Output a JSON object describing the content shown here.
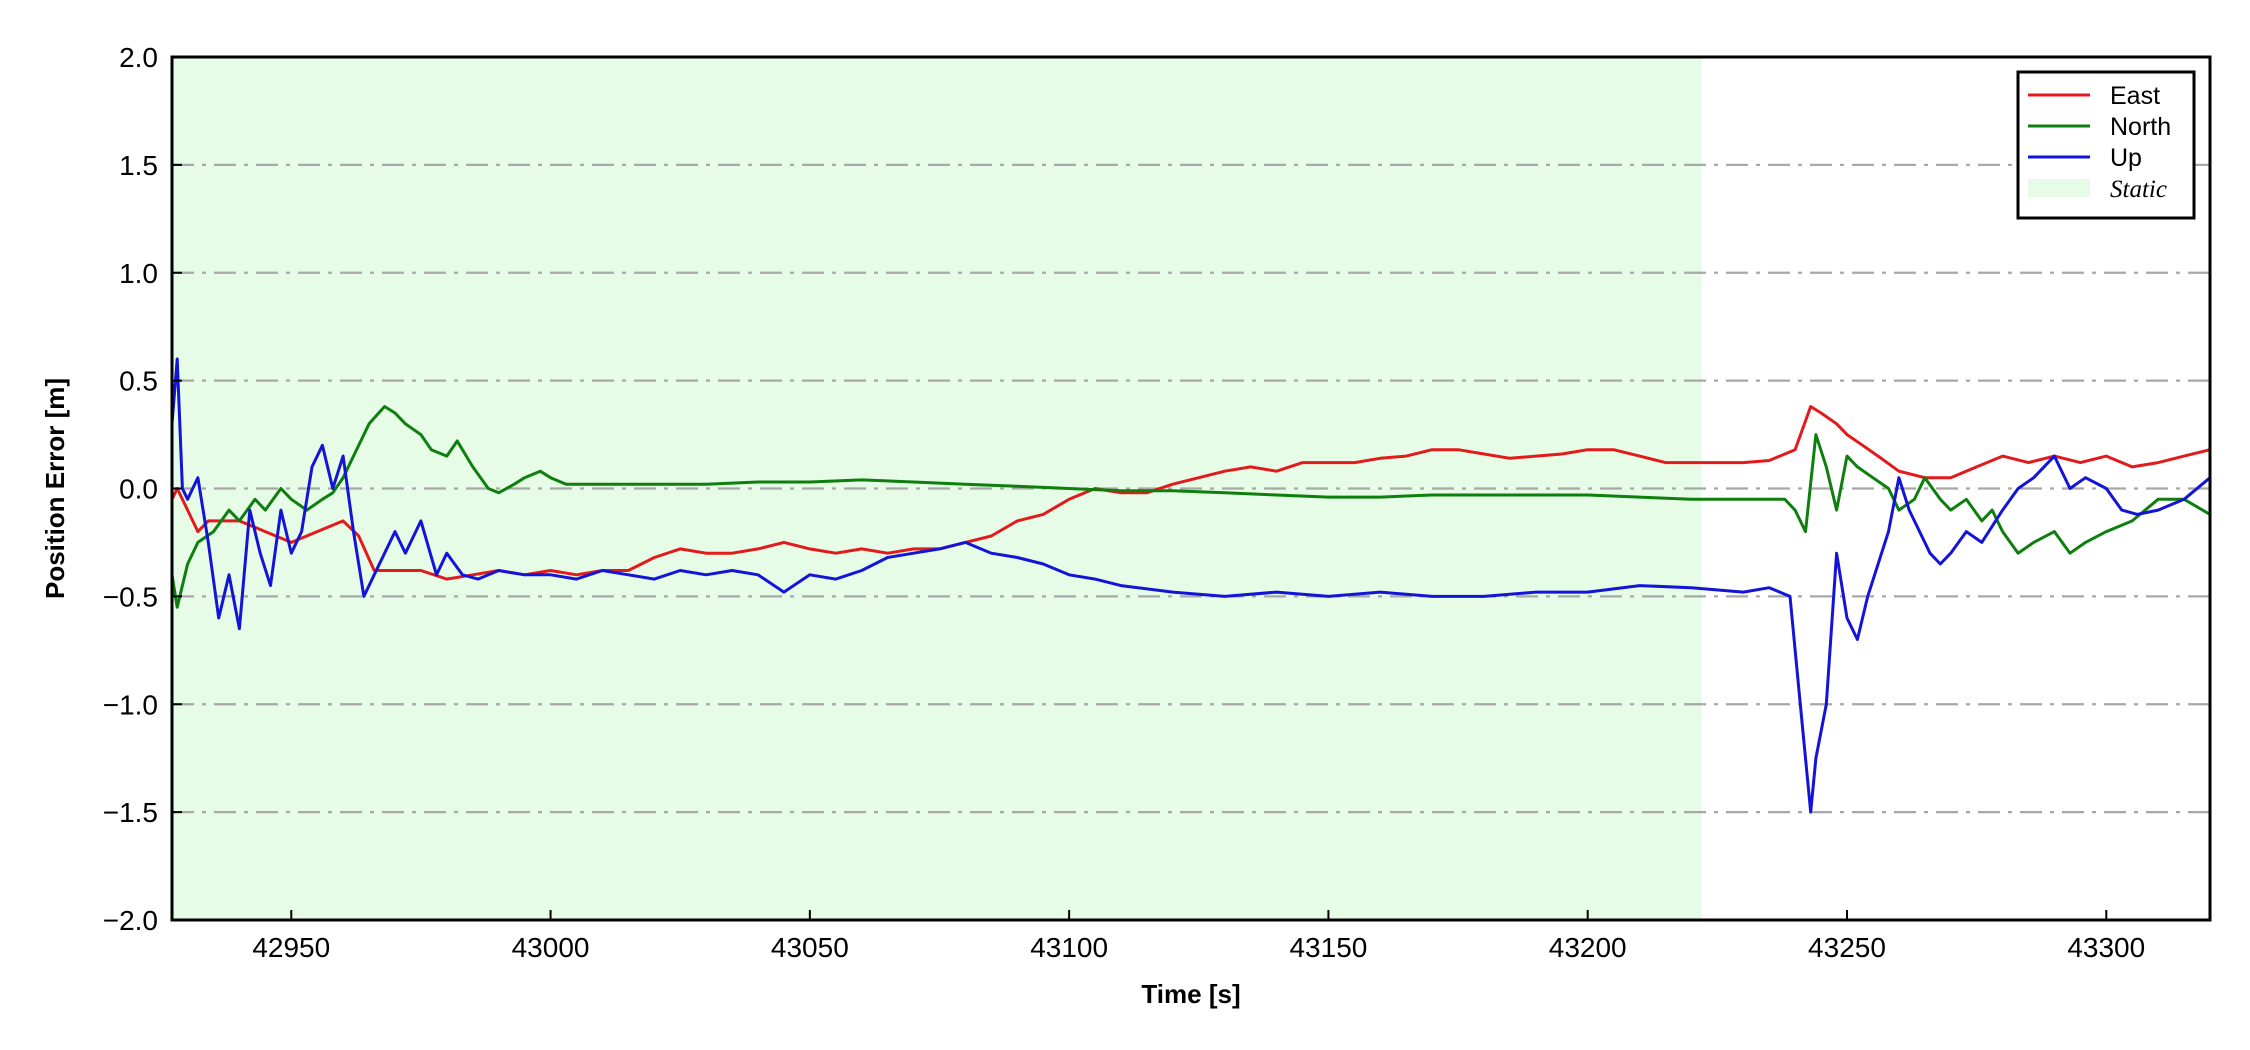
{
  "chart_data": {
    "type": "line",
    "title": "",
    "xlabel": "Time [s]",
    "ylabel": "Position Error [m]",
    "xlim": [
      42927,
      43320
    ],
    "ylim": [
      -2.0,
      2.0
    ],
    "x_ticks": [
      42950,
      43000,
      43050,
      43100,
      43150,
      43200,
      43250,
      43300
    ],
    "x_tick_labels": [
      "42950",
      "43000",
      "43050",
      "43100",
      "43150",
      "43200",
      "43250",
      "43300"
    ],
    "y_ticks": [
      -2.0,
      -1.5,
      -1.0,
      -0.5,
      0.0,
      0.5,
      1.0,
      1.5,
      2.0
    ],
    "y_tick_labels": [
      "−2.0",
      "−1.5",
      "−1.0",
      "−0.5",
      "0.0",
      "0.5",
      "1.0",
      "1.5",
      "2.0"
    ],
    "grid": "horizontal dash-dot",
    "legend_position": "top-right",
    "static_region": {
      "label": "Static",
      "x_start": 42927,
      "x_end": 43222,
      "color": "#e6fce6"
    },
    "series": [
      {
        "name": "East",
        "color": "#e31a1c",
        "x": [
          42927,
          42928,
          42930,
          42932,
          42934,
          42936,
          42940,
          42945,
          42950,
          42955,
          42960,
          42963,
          42966,
          42970,
          42975,
          42980,
          42985,
          42990,
          42995,
          43000,
          43005,
          43010,
          43015,
          43020,
          43025,
          43030,
          43035,
          43040,
          43045,
          43050,
          43055,
          43060,
          43065,
          43070,
          43075,
          43080,
          43085,
          43090,
          43095,
          43100,
          43105,
          43110,
          43115,
          43120,
          43125,
          43130,
          43135,
          43140,
          43145,
          43150,
          43155,
          43160,
          43165,
          43170,
          43175,
          43180,
          43185,
          43190,
          43195,
          43200,
          43205,
          43210,
          43215,
          43220,
          43225,
          43230,
          43235,
          43240,
          43243,
          43245,
          43248,
          43250,
          43253,
          43256,
          43260,
          43265,
          43270,
          43275,
          43280,
          43285,
          43290,
          43295,
          43300,
          43305,
          43310,
          43315,
          43320
        ],
        "y": [
          -0.05,
          0.0,
          -0.1,
          -0.2,
          -0.15,
          -0.15,
          -0.15,
          -0.2,
          -0.25,
          -0.2,
          -0.15,
          -0.22,
          -0.38,
          -0.38,
          -0.38,
          -0.42,
          -0.4,
          -0.38,
          -0.4,
          -0.38,
          -0.4,
          -0.38,
          -0.38,
          -0.32,
          -0.28,
          -0.3,
          -0.3,
          -0.28,
          -0.25,
          -0.28,
          -0.3,
          -0.28,
          -0.3,
          -0.28,
          -0.28,
          -0.25,
          -0.22,
          -0.15,
          -0.12,
          -0.05,
          0.0,
          -0.02,
          -0.02,
          0.02,
          0.05,
          0.08,
          0.1,
          0.08,
          0.12,
          0.12,
          0.12,
          0.14,
          0.15,
          0.18,
          0.18,
          0.16,
          0.14,
          0.15,
          0.16,
          0.18,
          0.18,
          0.15,
          0.12,
          0.12,
          0.12,
          0.12,
          0.13,
          0.18,
          0.38,
          0.35,
          0.3,
          0.25,
          0.2,
          0.15,
          0.08,
          0.05,
          0.05,
          0.1,
          0.15,
          0.12,
          0.15,
          0.12,
          0.15,
          0.1,
          0.12,
          0.15,
          0.18
        ]
      },
      {
        "name": "North",
        "color": "#0e7f0e",
        "x": [
          42927,
          42928,
          42930,
          42932,
          42935,
          42938,
          42940,
          42943,
          42945,
          42948,
          42950,
          42953,
          42956,
          42958,
          42960,
          42962,
          42965,
          42968,
          42970,
          42972,
          42975,
          42977,
          42980,
          42982,
          42985,
          42988,
          42990,
          42993,
          42995,
          42998,
          43000,
          43003,
          43005,
          43010,
          43015,
          43020,
          43030,
          43040,
          43050,
          43060,
          43070,
          43080,
          43090,
          43100,
          43110,
          43120,
          43130,
          43140,
          43150,
          43160,
          43170,
          43180,
          43190,
          43200,
          43210,
          43220,
          43230,
          43238,
          43240,
          43242,
          43244,
          43246,
          43248,
          43250,
          43252,
          43255,
          43258,
          43260,
          43263,
          43265,
          43268,
          43270,
          43273,
          43276,
          43278,
          43280,
          43283,
          43286,
          43290,
          43293,
          43296,
          43300,
          43305,
          43310,
          43315,
          43320
        ],
        "y": [
          -0.4,
          -0.55,
          -0.35,
          -0.25,
          -0.2,
          -0.1,
          -0.15,
          -0.05,
          -0.1,
          0.0,
          -0.05,
          -0.1,
          -0.05,
          -0.02,
          0.05,
          0.15,
          0.3,
          0.38,
          0.35,
          0.3,
          0.25,
          0.18,
          0.15,
          0.22,
          0.1,
          0.0,
          -0.02,
          0.02,
          0.05,
          0.08,
          0.05,
          0.02,
          0.02,
          0.02,
          0.02,
          0.02,
          0.02,
          0.03,
          0.03,
          0.04,
          0.03,
          0.02,
          0.01,
          0.0,
          -0.01,
          -0.01,
          -0.02,
          -0.03,
          -0.04,
          -0.04,
          -0.03,
          -0.03,
          -0.03,
          -0.03,
          -0.04,
          -0.05,
          -0.05,
          -0.05,
          -0.1,
          -0.2,
          0.25,
          0.1,
          -0.1,
          0.15,
          0.1,
          0.05,
          0.0,
          -0.1,
          -0.05,
          0.05,
          -0.05,
          -0.1,
          -0.05,
          -0.15,
          -0.1,
          -0.2,
          -0.3,
          -0.25,
          -0.2,
          -0.3,
          -0.25,
          -0.2,
          -0.15,
          -0.05,
          -0.05,
          -0.12
        ]
      },
      {
        "name": "Up",
        "color": "#1414d8",
        "x": [
          42927,
          42928,
          42929,
          42930,
          42931,
          42932,
          42934,
          42936,
          42938,
          42940,
          42942,
          42944,
          42946,
          42948,
          42950,
          42952,
          42954,
          42956,
          42958,
          42960,
          42962,
          42964,
          42966,
          42968,
          42970,
          42972,
          42975,
          42978,
          42980,
          42983,
          42986,
          42990,
          42995,
          43000,
          43005,
          43010,
          43015,
          43020,
          43025,
          43030,
          43035,
          43040,
          43045,
          43050,
          43055,
          43060,
          43065,
          43070,
          43075,
          43080,
          43085,
          43090,
          43095,
          43100,
          43105,
          43110,
          43120,
          43130,
          43140,
          43150,
          43160,
          43170,
          43180,
          43190,
          43200,
          43210,
          43220,
          43230,
          43235,
          43239,
          43241,
          43243,
          43244,
          43246,
          43248,
          43250,
          43252,
          43254,
          43256,
          43258,
          43260,
          43262,
          43264,
          43266,
          43268,
          43270,
          43273,
          43276,
          43280,
          43283,
          43286,
          43290,
          43293,
          43296,
          43300,
          43303,
          43306,
          43310,
          43315,
          43320
        ],
        "y": [
          0.3,
          0.6,
          0.0,
          -0.05,
          0.0,
          0.05,
          -0.25,
          -0.6,
          -0.4,
          -0.65,
          -0.1,
          -0.3,
          -0.45,
          -0.1,
          -0.3,
          -0.2,
          0.1,
          0.2,
          0.0,
          0.15,
          -0.2,
          -0.5,
          -0.4,
          -0.3,
          -0.2,
          -0.3,
          -0.15,
          -0.4,
          -0.3,
          -0.4,
          -0.42,
          -0.38,
          -0.4,
          -0.4,
          -0.42,
          -0.38,
          -0.4,
          -0.42,
          -0.38,
          -0.4,
          -0.38,
          -0.4,
          -0.48,
          -0.4,
          -0.42,
          -0.38,
          -0.32,
          -0.3,
          -0.28,
          -0.25,
          -0.3,
          -0.32,
          -0.35,
          -0.4,
          -0.42,
          -0.45,
          -0.48,
          -0.5,
          -0.48,
          -0.5,
          -0.48,
          -0.5,
          -0.5,
          -0.48,
          -0.48,
          -0.45,
          -0.46,
          -0.48,
          -0.46,
          -0.5,
          -1.0,
          -1.5,
          -1.25,
          -1.0,
          -0.3,
          -0.6,
          -0.7,
          -0.5,
          -0.35,
          -0.2,
          0.05,
          -0.1,
          -0.2,
          -0.3,
          -0.35,
          -0.3,
          -0.2,
          -0.25,
          -0.1,
          0.0,
          0.05,
          0.15,
          0.0,
          0.05,
          0.0,
          -0.1,
          -0.12,
          -0.1,
          -0.05,
          0.05
        ]
      }
    ]
  }
}
